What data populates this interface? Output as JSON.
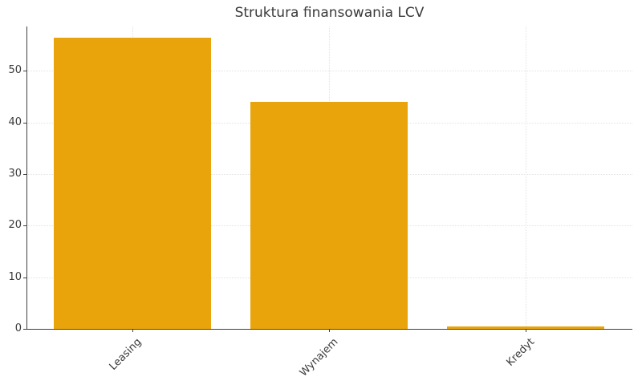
{
  "chart_data": {
    "type": "bar",
    "title": "Struktura finansowania LCV",
    "categories": [
      "Leasing",
      "Wynajem",
      "Kredyt"
    ],
    "values": [
      56.5,
      44,
      0.5
    ],
    "xlabel": "",
    "ylabel": "",
    "ylim": [
      0,
      58.6
    ],
    "yticks": [
      0,
      10,
      20,
      30,
      40,
      50
    ],
    "grid": "dotted-horizontal-and-vertical",
    "legend": "none",
    "x_tick_rotation_deg": 45,
    "colors": {
      "bar": "#E9A40C",
      "axis": "#3F3F3F",
      "grid": "#E2E2E2",
      "text": "#3A3A3A",
      "background": "#FFFFFF"
    }
  }
}
